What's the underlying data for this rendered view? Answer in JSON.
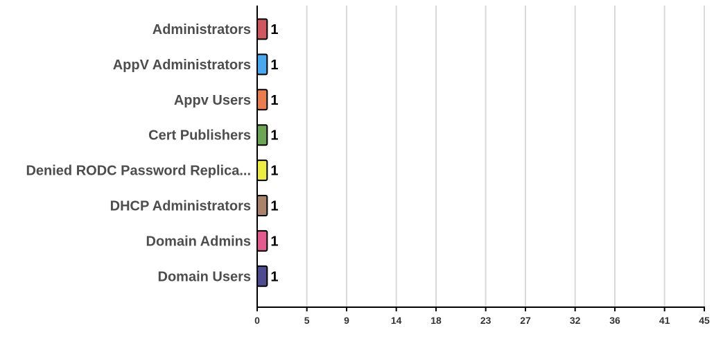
{
  "chart_data": {
    "type": "bar",
    "orientation": "horizontal",
    "title": "",
    "xlabel": "",
    "ylabel": "",
    "categories": [
      "Administrators",
      "AppV Administrators",
      "Appv Users",
      "Cert Publishers",
      "Denied RODC Password Replica...",
      "DHCP Administrators",
      "Domain Admins",
      "Domain Users"
    ],
    "values": [
      1,
      1,
      1,
      1,
      1,
      1,
      1,
      1
    ],
    "data_labels": [
      "1",
      "1",
      "1",
      "1",
      "1",
      "1",
      "1",
      "1"
    ],
    "colors": [
      "#d0575f",
      "#4aa8ee",
      "#ea7d4f",
      "#6ca654",
      "#ecec42",
      "#a9846a",
      "#e45c8f",
      "#4f4b90"
    ],
    "xlim": [
      0,
      45
    ],
    "x_ticks": [
      "0",
      "5",
      "9",
      "14",
      "18",
      "23",
      "27",
      "32",
      "36",
      "41",
      "45"
    ],
    "grid": "vertical",
    "legend": "none"
  }
}
